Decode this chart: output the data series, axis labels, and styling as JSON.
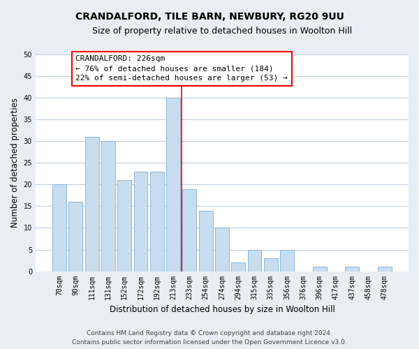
{
  "title": "CRANDALFORD, TILE BARN, NEWBURY, RG20 9UU",
  "subtitle": "Size of property relative to detached houses in Woolton Hill",
  "xlabel": "Distribution of detached houses by size in Woolton Hill",
  "ylabel": "Number of detached properties",
  "bar_color": "#c8ddf0",
  "bar_edge_color": "#8ab8d8",
  "background_color": "#e8eef4",
  "plot_bg_color": "#ffffff",
  "grid_color": "#c0cfe0",
  "bin_labels": [
    "70sqm",
    "90sqm",
    "111sqm",
    "131sqm",
    "152sqm",
    "172sqm",
    "192sqm",
    "213sqm",
    "233sqm",
    "254sqm",
    "274sqm",
    "294sqm",
    "315sqm",
    "335sqm",
    "356sqm",
    "376sqm",
    "396sqm",
    "417sqm",
    "437sqm",
    "458sqm",
    "478sqm"
  ],
  "bar_values": [
    20,
    16,
    31,
    30,
    21,
    23,
    23,
    40,
    19,
    14,
    10,
    2,
    5,
    3,
    5,
    0,
    1,
    0,
    1,
    0,
    1
  ],
  "marker_bin_index": 8,
  "marker_label": "CRANDALFORD: 226sqm",
  "annotation_line1": "← 76% of detached houses are smaller (184)",
  "annotation_line2": "22% of semi-detached houses are larger (53) →",
  "ylim": [
    0,
    50
  ],
  "yticks": [
    0,
    5,
    10,
    15,
    20,
    25,
    30,
    35,
    40,
    45,
    50
  ],
  "footer_line1": "Contains HM Land Registry data © Crown copyright and database right 2024.",
  "footer_line2": "Contains public sector information licensed under the Open Government Licence v3.0.",
  "title_fontsize": 10,
  "subtitle_fontsize": 9,
  "axis_label_fontsize": 8.5,
  "tick_fontsize": 7,
  "annotation_fontsize": 8,
  "footer_fontsize": 6.5
}
